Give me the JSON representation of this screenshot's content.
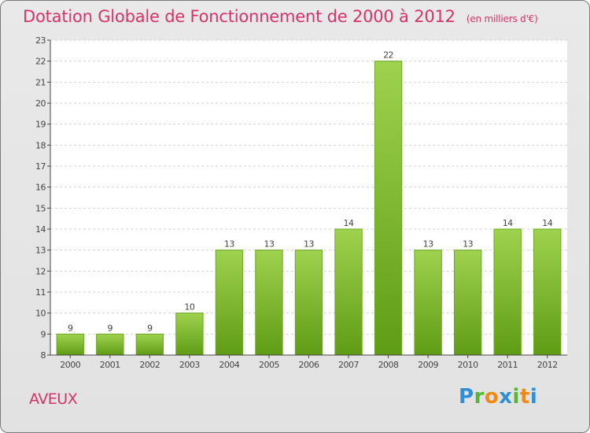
{
  "header": {
    "title": "Dotation Globale de Fonctionnement de 2000 à 2012",
    "unit": "(en milliers d'€)"
  },
  "footer": {
    "commune": "AVEUX",
    "logo": [
      "P",
      "r",
      "o",
      "x",
      "i",
      "t",
      "i"
    ]
  },
  "colors": {
    "accent": "#d6336c",
    "bar_top": "#9fd24e",
    "bar_bottom": "#5f9c16",
    "bar_border": "#6aa81f",
    "grid": "#d0d0d0"
  },
  "chart_data": {
    "type": "bar",
    "title": "Dotation Globale de Fonctionnement de 2000 à 2012",
    "subtitle": "(en milliers d'€)",
    "categories": [
      "2000",
      "2001",
      "2002",
      "2003",
      "2004",
      "2005",
      "2006",
      "2007",
      "2008",
      "2009",
      "2010",
      "2011",
      "2012"
    ],
    "values": [
      9,
      9,
      9,
      10,
      13,
      13,
      13,
      14,
      22,
      13,
      13,
      14,
      14
    ],
    "ylim": [
      8,
      23
    ],
    "yticks": [
      8,
      9,
      10,
      11,
      12,
      13,
      14,
      15,
      16,
      17,
      18,
      19,
      20,
      21,
      22,
      23
    ],
    "xlabel": "",
    "ylabel": "",
    "grid": true
  }
}
